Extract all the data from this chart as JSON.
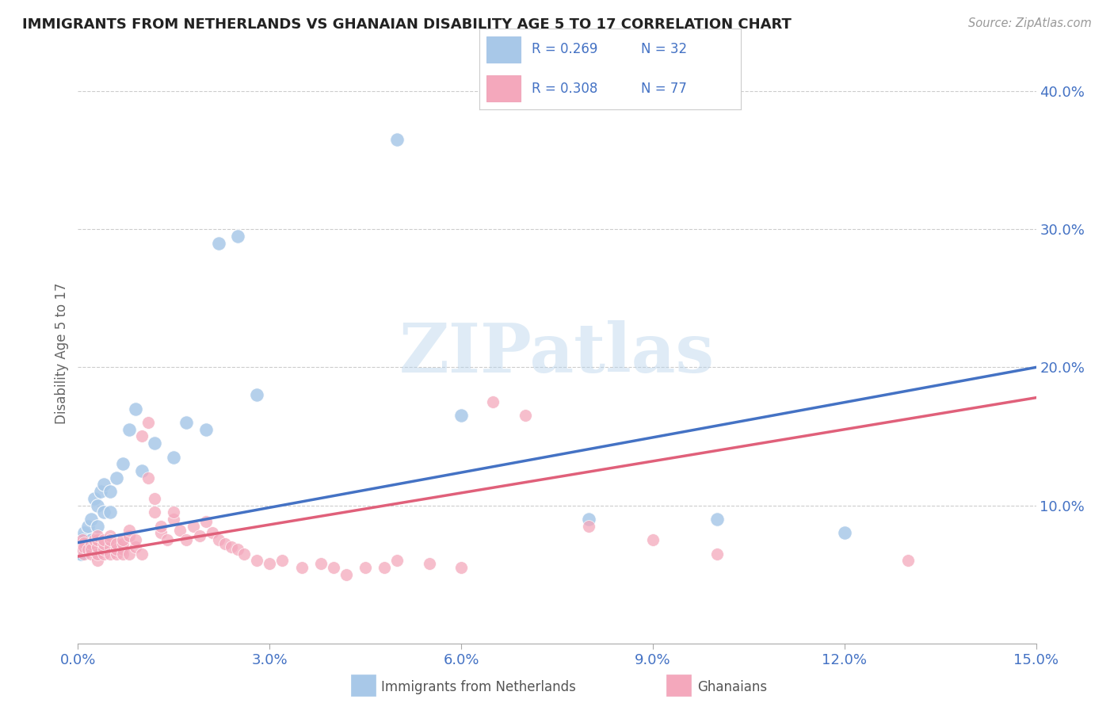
{
  "title": "IMMIGRANTS FROM NETHERLANDS VS GHANAIAN DISABILITY AGE 5 TO 17 CORRELATION CHART",
  "source": "Source: ZipAtlas.com",
  "ylabel": "Disability Age 5 to 17",
  "color_blue_scatter": "#a8c8e8",
  "color_pink_scatter": "#f4a8bc",
  "color_blue_line": "#4472c4",
  "color_pink_line": "#e0607a",
  "color_blue_text": "#4472c4",
  "color_title": "#222222",
  "color_source": "#999999",
  "color_ylabel": "#666666",
  "color_grid": "#cccccc",
  "background_color": "#ffffff",
  "watermark_text": "ZIPatlas",
  "legend_r1": "R = 0.269",
  "legend_n1": "N = 32",
  "legend_r2": "R = 0.308",
  "legend_n2": "N = 77",
  "label_netherlands": "Immigrants from Netherlands",
  "label_ghanaians": "Ghanaians",
  "xlim": [
    0.0,
    0.15
  ],
  "ylim": [
    0.0,
    0.42
  ],
  "xticks": [
    0.0,
    0.03,
    0.06,
    0.09,
    0.12,
    0.15
  ],
  "yticks": [
    0.1,
    0.2,
    0.3,
    0.4
  ],
  "nl_x": [
    0.0003,
    0.0005,
    0.001,
    0.001,
    0.0015,
    0.002,
    0.002,
    0.0025,
    0.003,
    0.003,
    0.0035,
    0.004,
    0.004,
    0.005,
    0.005,
    0.006,
    0.007,
    0.008,
    0.009,
    0.01,
    0.012,
    0.015,
    0.017,
    0.02,
    0.022,
    0.025,
    0.028,
    0.05,
    0.06,
    0.08,
    0.1,
    0.12
  ],
  "nl_y": [
    0.075,
    0.065,
    0.08,
    0.07,
    0.085,
    0.09,
    0.075,
    0.105,
    0.1,
    0.085,
    0.11,
    0.095,
    0.115,
    0.11,
    0.095,
    0.12,
    0.13,
    0.155,
    0.17,
    0.125,
    0.145,
    0.135,
    0.16,
    0.155,
    0.29,
    0.295,
    0.18,
    0.365,
    0.165,
    0.09,
    0.09,
    0.08
  ],
  "gh_x": [
    0.0002,
    0.0003,
    0.0005,
    0.0007,
    0.001,
    0.001,
    0.001,
    0.0015,
    0.002,
    0.002,
    0.002,
    0.0025,
    0.003,
    0.003,
    0.003,
    0.003,
    0.003,
    0.004,
    0.004,
    0.004,
    0.004,
    0.005,
    0.005,
    0.005,
    0.005,
    0.006,
    0.006,
    0.006,
    0.007,
    0.007,
    0.007,
    0.007,
    0.008,
    0.008,
    0.008,
    0.009,
    0.009,
    0.01,
    0.01,
    0.011,
    0.011,
    0.012,
    0.012,
    0.013,
    0.013,
    0.014,
    0.015,
    0.015,
    0.016,
    0.017,
    0.018,
    0.019,
    0.02,
    0.021,
    0.022,
    0.023,
    0.024,
    0.025,
    0.026,
    0.028,
    0.03,
    0.032,
    0.035,
    0.038,
    0.04,
    0.042,
    0.045,
    0.048,
    0.05,
    0.055,
    0.06,
    0.065,
    0.07,
    0.08,
    0.09,
    0.1,
    0.13
  ],
  "gh_y": [
    0.07,
    0.072,
    0.068,
    0.075,
    0.073,
    0.065,
    0.07,
    0.068,
    0.065,
    0.072,
    0.068,
    0.075,
    0.06,
    0.065,
    0.07,
    0.075,
    0.078,
    0.065,
    0.068,
    0.072,
    0.075,
    0.07,
    0.065,
    0.078,
    0.075,
    0.065,
    0.068,
    0.072,
    0.068,
    0.072,
    0.065,
    0.075,
    0.065,
    0.078,
    0.082,
    0.07,
    0.075,
    0.065,
    0.15,
    0.16,
    0.12,
    0.095,
    0.105,
    0.08,
    0.085,
    0.075,
    0.09,
    0.095,
    0.082,
    0.075,
    0.085,
    0.078,
    0.088,
    0.08,
    0.075,
    0.072,
    0.07,
    0.068,
    0.065,
    0.06,
    0.058,
    0.06,
    0.055,
    0.058,
    0.055,
    0.05,
    0.055,
    0.055,
    0.06,
    0.058,
    0.055,
    0.175,
    0.165,
    0.085,
    0.075,
    0.065,
    0.06
  ]
}
